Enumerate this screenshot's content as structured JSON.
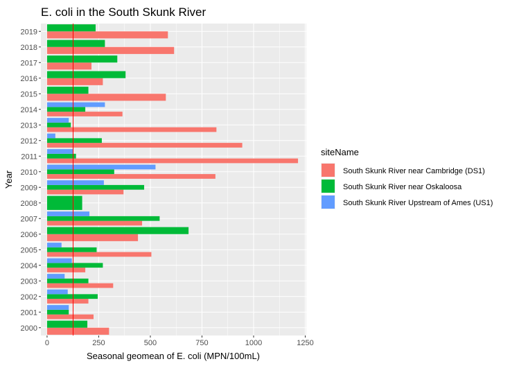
{
  "chart_data": {
    "type": "bar",
    "orientation": "horizontal",
    "title": "E. coli in the South Skunk River",
    "xlabel": "Seasonal geomean of E. coli (MPN/100mL)",
    "ylabel": "Year",
    "xlim": [
      -30,
      1255
    ],
    "xticks": [
      0,
      250,
      500,
      750,
      1000,
      1250
    ],
    "xtick_labels": [
      "0",
      "250",
      "500",
      "750",
      "1000",
      "1250"
    ],
    "categories": [
      "2000",
      "2001",
      "2002",
      "2003",
      "2004",
      "2005",
      "2006",
      "2007",
      "2008",
      "2009",
      "2010",
      "2011",
      "2012",
      "2013",
      "2014",
      "2015",
      "2016",
      "2017",
      "2018",
      "2019"
    ],
    "legend_title": "siteName",
    "legend_position": "right",
    "grid": true,
    "panel_background": "#EBEBEB",
    "series": [
      {
        "name": "South Skunk River near Cambridge (DS1)",
        "color": "#F8766D",
        "values": [
          300,
          225,
          200,
          320,
          185,
          505,
          440,
          460,
          null,
          370,
          815,
          1215,
          945,
          820,
          365,
          575,
          270,
          215,
          615,
          585
        ]
      },
      {
        "name": "South Skunk River near Oskaloosa",
        "color": "#00BA38",
        "values": [
          195,
          105,
          245,
          200,
          270,
          240,
          685,
          545,
          170,
          470,
          325,
          140,
          265,
          115,
          185,
          200,
          380,
          340,
          280,
          235
        ]
      },
      {
        "name": "South Skunk River Upstream of Ames (US1)",
        "color": "#619CFF",
        "values": [
          null,
          105,
          100,
          85,
          120,
          70,
          null,
          205,
          null,
          275,
          525,
          125,
          40,
          105,
          280,
          null,
          null,
          null,
          null,
          null
        ]
      }
    ],
    "reference_line": {
      "x": 126,
      "color": "#FF0000"
    }
  }
}
